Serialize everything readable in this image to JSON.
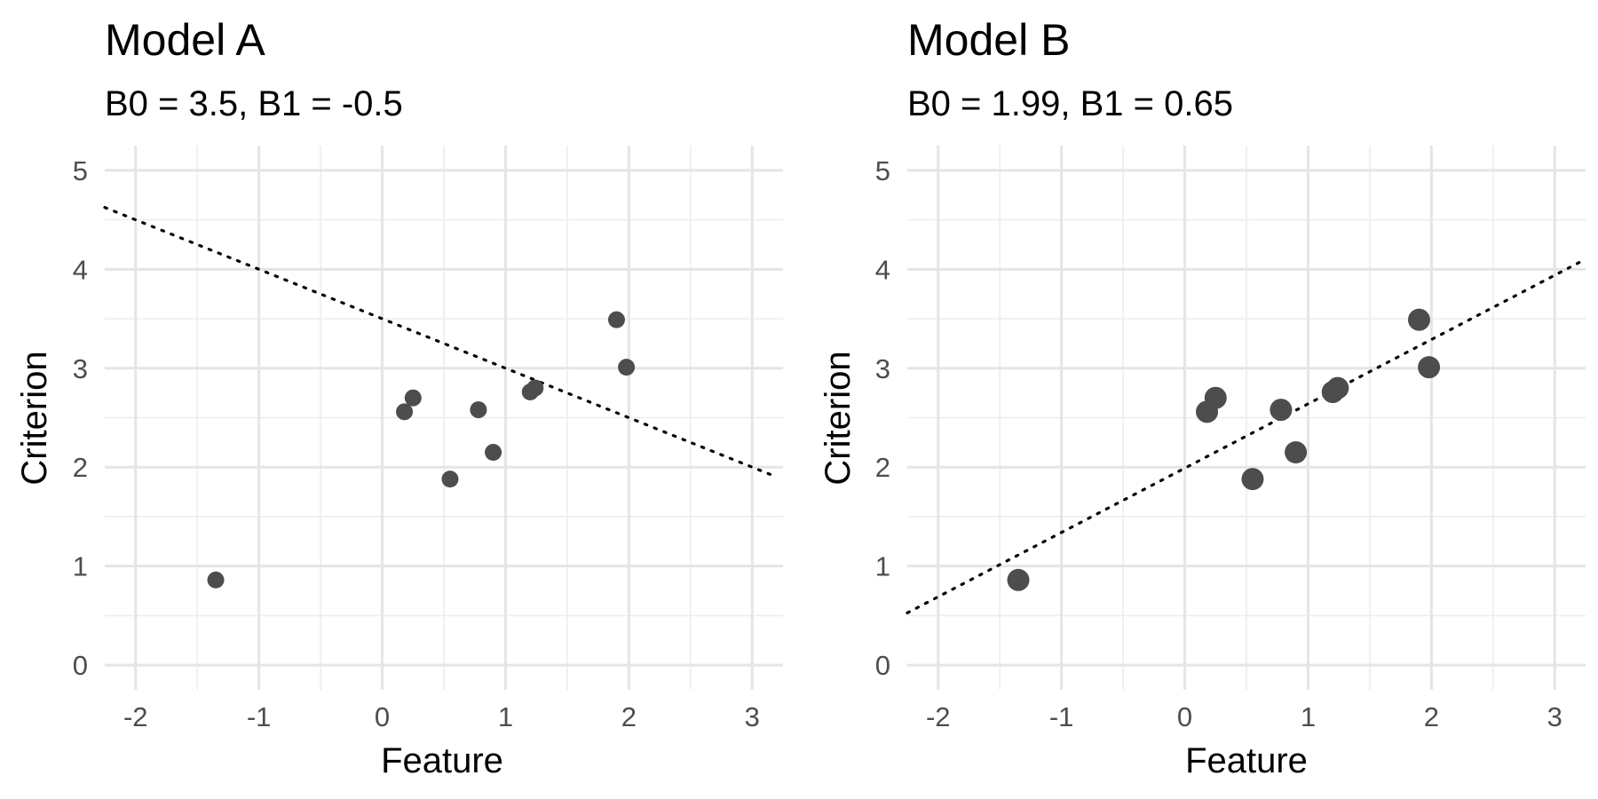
{
  "chart_data": [
    {
      "type": "scatter",
      "title": "Model A",
      "subtitle": "B0 = 3.5, B1 = -0.5",
      "xlabel": "Feature",
      "ylabel": "Criterion",
      "xlim": [
        -2.25,
        3.25
      ],
      "ylim": [
        -0.25,
        5.25
      ],
      "xticks": [
        -2,
        -1,
        0,
        1,
        2,
        3
      ],
      "yticks": [
        0,
        1,
        2,
        3,
        4,
        5
      ],
      "grid": true,
      "legend": "none",
      "point_color": "#4d4d4d",
      "points": [
        {
          "x": -1.35,
          "y": 0.86
        },
        {
          "x": 0.18,
          "y": 2.56
        },
        {
          "x": 0.25,
          "y": 2.7
        },
        {
          "x": 0.55,
          "y": 1.88
        },
        {
          "x": 0.78,
          "y": 2.58
        },
        {
          "x": 0.9,
          "y": 2.15
        },
        {
          "x": 1.2,
          "y": 2.76
        },
        {
          "x": 1.24,
          "y": 2.8
        },
        {
          "x": 1.9,
          "y": 3.49
        },
        {
          "x": 1.98,
          "y": 3.01
        }
      ],
      "fit_line": {
        "intercept": 3.5,
        "slope": -0.5,
        "style": "dotted",
        "x_range": [
          -2.25,
          3.2
        ]
      }
    },
    {
      "type": "scatter",
      "title": "Model B",
      "subtitle": "B0 = 1.99, B1 = 0.65",
      "xlabel": "Feature",
      "ylabel": "Criterion",
      "xlim": [
        -2.25,
        3.25
      ],
      "ylim": [
        -0.25,
        5.25
      ],
      "xticks": [
        -2,
        -1,
        0,
        1,
        2,
        3
      ],
      "yticks": [
        0,
        1,
        2,
        3,
        4,
        5
      ],
      "grid": true,
      "legend": "none",
      "point_color": "#4d4d4d",
      "points": [
        {
          "x": -1.35,
          "y": 0.86
        },
        {
          "x": 0.18,
          "y": 2.56
        },
        {
          "x": 0.25,
          "y": 2.7
        },
        {
          "x": 0.55,
          "y": 1.88
        },
        {
          "x": 0.78,
          "y": 2.58
        },
        {
          "x": 0.9,
          "y": 2.15
        },
        {
          "x": 1.2,
          "y": 2.76
        },
        {
          "x": 1.24,
          "y": 2.8
        },
        {
          "x": 1.9,
          "y": 3.49
        },
        {
          "x": 1.98,
          "y": 3.01
        }
      ],
      "fit_line": {
        "intercept": 1.99,
        "slope": 0.65,
        "style": "dotted",
        "x_range": [
          -2.25,
          3.25
        ]
      }
    }
  ]
}
